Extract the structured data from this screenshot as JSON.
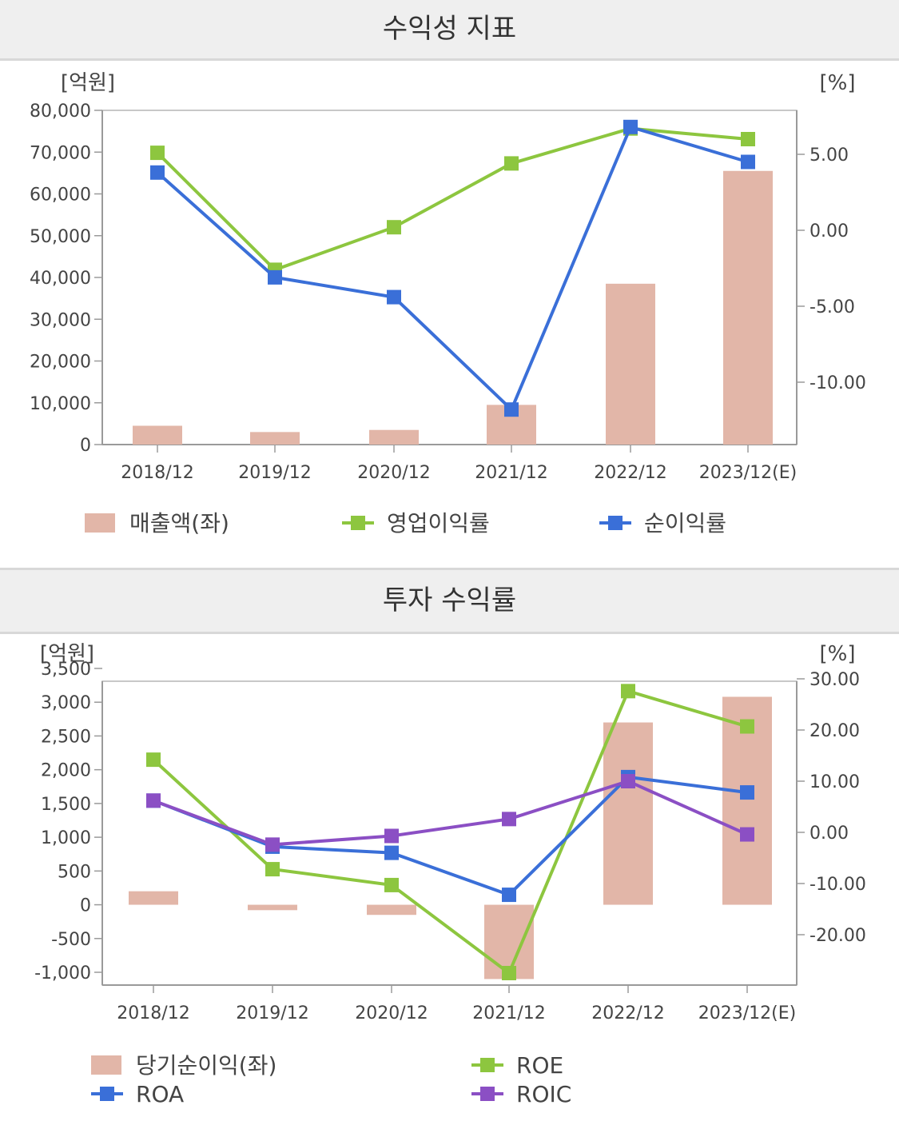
{
  "chart_data": [
    {
      "type": "bar+line",
      "title": "수익성 지표",
      "left_unit": "[억원]",
      "right_unit": "[%]",
      "categories": [
        "2018/12",
        "2019/12",
        "2020/12",
        "2021/12",
        "2022/12",
        "2023/12(E)"
      ],
      "left_axis": {
        "min": 0,
        "max": 80000,
        "ticks": [
          "80,000",
          "70,000",
          "60,000",
          "50,000",
          "40,000",
          "30,000",
          "20,000",
          "10,000",
          "0"
        ]
      },
      "right_axis": {
        "ticks": [
          "5.00",
          "0.00",
          "-5.00",
          "-10.00"
        ]
      },
      "bars": {
        "name": "매출액(좌)",
        "axis": "left",
        "color": "#e2b6a8",
        "values": [
          4500,
          3000,
          3500,
          9500,
          38500,
          65500
        ]
      },
      "series": [
        {
          "name": "영업이익률",
          "axis": "right",
          "color": "#8dc63f",
          "values": [
            5.1,
            -2.6,
            0.2,
            4.4,
            6.7,
            6.0
          ]
        },
        {
          "name": "순이익률",
          "axis": "right",
          "color": "#3a6fd8",
          "values": [
            3.8,
            -3.1,
            -4.4,
            -11.8,
            6.8,
            4.5
          ]
        }
      ],
      "legend_placement": "bottom"
    },
    {
      "type": "bar+line",
      "title": "투자 수익률",
      "left_unit": "[억원]",
      "right_unit": "[%]",
      "categories": [
        "2018/12",
        "2019/12",
        "2020/12",
        "2021/12",
        "2022/12",
        "2023/12(E)"
      ],
      "left_axis": {
        "min": -1000,
        "max": 3500,
        "ticks": [
          "3,500",
          "3,000",
          "2,500",
          "2,000",
          "1,500",
          "1,000",
          "500",
          "0",
          "-500",
          "-1,000"
        ]
      },
      "right_axis": {
        "ticks": [
          "30.00",
          "20.00",
          "10.00",
          "0.00",
          "-10.00",
          "-20.00"
        ]
      },
      "bars": {
        "name": "당기순이익(좌)",
        "axis": "left",
        "color": "#e2b6a8",
        "values": [
          200,
          -80,
          -150,
          -1100,
          2700,
          3080
        ]
      },
      "series": [
        {
          "name": "ROE",
          "axis": "right",
          "color": "#8dc63f",
          "values": [
            14.2,
            -7.2,
            -10.3,
            -27.5,
            27.6,
            20.7
          ]
        },
        {
          "name": "ROA",
          "axis": "right",
          "color": "#3a6fd8",
          "values": [
            6.2,
            -2.8,
            -4.0,
            -12.2,
            10.8,
            7.8
          ]
        },
        {
          "name": "ROIC",
          "axis": "right",
          "color": "#8b4fc4",
          "values": [
            6.2,
            -2.4,
            -0.7,
            2.6,
            10.0,
            -0.4
          ]
        }
      ],
      "legend_placement": "bottom"
    }
  ]
}
